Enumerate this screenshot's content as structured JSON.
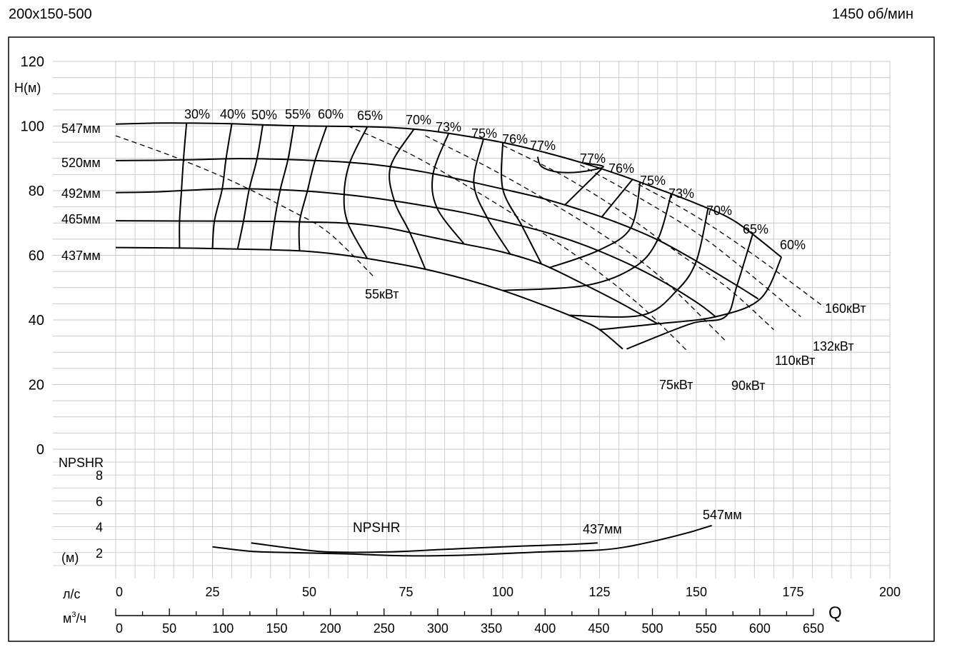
{
  "header": {
    "model": "200x150-500",
    "speed": "1450 об/мин"
  },
  "chart_data": [
    {
      "type": "line",
      "name": "head",
      "ylabel": "Н(м)",
      "ylim": [
        0,
        120
      ],
      "yticks": [
        0,
        20,
        40,
        60,
        80,
        100,
        120
      ],
      "xlim": [
        0,
        200
      ],
      "series": [
        {
          "name": "547мм",
          "points": [
            [
              0,
              100.6
            ],
            [
              10,
              100.9
            ],
            [
              20,
              100.9
            ],
            [
              30,
              100.7
            ],
            [
              40,
              100.3
            ],
            [
              50,
              100.0
            ],
            [
              60,
              99.9
            ],
            [
              70,
              99.6
            ],
            [
              80,
              98.7
            ],
            [
              90,
              97.0
            ],
            [
              100,
              94.9
            ],
            [
              110,
              92.1
            ],
            [
              120,
              88.8
            ],
            [
              130,
              85.0
            ],
            [
              140,
              80.6
            ],
            [
              150,
              76.0
            ],
            [
              160,
              70.5
            ],
            [
              172,
              59.4
            ]
          ]
        },
        {
          "name": "520мм",
          "points": [
            [
              0,
              89.3
            ],
            [
              10,
              89.4
            ],
            [
              20,
              89.6
            ],
            [
              30,
              89.9
            ],
            [
              40,
              89.8
            ],
            [
              50,
              89.4
            ],
            [
              60,
              88.8
            ],
            [
              70,
              87.6
            ],
            [
              80,
              85.7
            ],
            [
              90,
              83.2
            ],
            [
              100,
              80.5
            ],
            [
              110,
              77.7
            ],
            [
              120,
              74.1
            ],
            [
              130,
              69.9
            ],
            [
              140,
              64.8
            ],
            [
              150,
              58.2
            ],
            [
              160,
              51.0
            ],
            [
              166,
              46.5
            ]
          ]
        },
        {
          "name": "492мм",
          "points": [
            [
              0,
              79.4
            ],
            [
              10,
              79.6
            ],
            [
              20,
              80.2
            ],
            [
              30,
              80.6
            ],
            [
              40,
              80.4
            ],
            [
              50,
              79.8
            ],
            [
              60,
              78.7
            ],
            [
              70,
              77.2
            ],
            [
              80,
              75.3
            ],
            [
              90,
              73.2
            ],
            [
              100,
              70.5
            ],
            [
              110,
              67.5
            ],
            [
              120,
              63.6
            ],
            [
              130,
              58.7
            ],
            [
              140,
              52.8
            ],
            [
              150,
              45.5
            ],
            [
              155,
              41.0
            ]
          ]
        },
        {
          "name": "465мм",
          "points": [
            [
              0,
              70.7
            ],
            [
              20,
              70.6
            ],
            [
              40,
              70.5
            ],
            [
              50,
              70.3
            ],
            [
              60,
              69.9
            ],
            [
              70,
              68.5
            ],
            [
              80,
              66.0
            ],
            [
              90,
              63.5
            ],
            [
              100,
              61.0
            ],
            [
              110,
              57.3
            ],
            [
              120,
              51.6
            ],
            [
              130,
              45.5
            ],
            [
              140,
              38.8
            ]
          ]
        },
        {
          "name": "437мм",
          "points": [
            [
              0,
              62.4
            ],
            [
              20,
              62.2
            ],
            [
              40,
              61.7
            ],
            [
              50,
              61.2
            ],
            [
              60,
              59.9
            ],
            [
              70,
              58.0
            ],
            [
              80,
              55.7
            ],
            [
              90,
              52.7
            ],
            [
              100,
              49.1
            ],
            [
              110,
              44.8
            ],
            [
              120,
              40.0
            ],
            [
              125,
              37.0
            ],
            [
              131,
              31.0
            ]
          ]
        }
      ],
      "efficiency_labels": [
        "30%",
        "40%",
        "50%",
        "55%",
        "60%",
        "65%",
        "70%",
        "73%",
        "75%",
        "76%",
        "77%",
        "77%",
        "76%",
        "75%",
        "73%",
        "70%",
        "65%",
        "60%"
      ],
      "power_labels": [
        "55кВт",
        "75кВт",
        "90кВт",
        "110кВт",
        "132кВт",
        "160кВт"
      ]
    },
    {
      "type": "line",
      "name": "npshr",
      "title": "NPSHR",
      "ylabel": "NPSHR",
      "yunit": "(м)",
      "ylim": [
        0,
        10
      ],
      "yticks": [
        2,
        4,
        6,
        8
      ],
      "xlim": [
        0,
        200
      ],
      "series": [
        {
          "name": "437мм",
          "points": [
            [
              35,
              2.75
            ],
            [
              45,
              2.35
            ],
            [
              55,
              2.05
            ],
            [
              70,
              2.05
            ],
            [
              85,
              2.25
            ],
            [
              100,
              2.45
            ],
            [
              115,
              2.6
            ],
            [
              124.5,
              2.75
            ]
          ]
        },
        {
          "name": "547мм",
          "points": [
            [
              25,
              2.45
            ],
            [
              35,
              2.1
            ],
            [
              45,
              2.0
            ],
            [
              60,
              1.9
            ],
            [
              75,
              1.75
            ],
            [
              90,
              1.8
            ],
            [
              110,
              2.05
            ],
            [
              125,
              2.2
            ],
            [
              132,
              2.45
            ],
            [
              140,
              2.95
            ],
            [
              148,
              3.55
            ],
            [
              154,
              4.1
            ]
          ]
        }
      ]
    }
  ],
  "axes": {
    "flow_ls": {
      "unit": "л/с",
      "ticks": [
        0,
        25,
        50,
        75,
        100,
        125,
        150,
        175,
        200
      ]
    },
    "flow_m3h": {
      "unit_prefix": "м",
      "unit_sup": "3",
      "unit_suffix": "/ч",
      "ticks": [
        0,
        50,
        100,
        150,
        200,
        250,
        300,
        350,
        400,
        450,
        500,
        550,
        600,
        650
      ]
    },
    "q_label": "Q"
  }
}
